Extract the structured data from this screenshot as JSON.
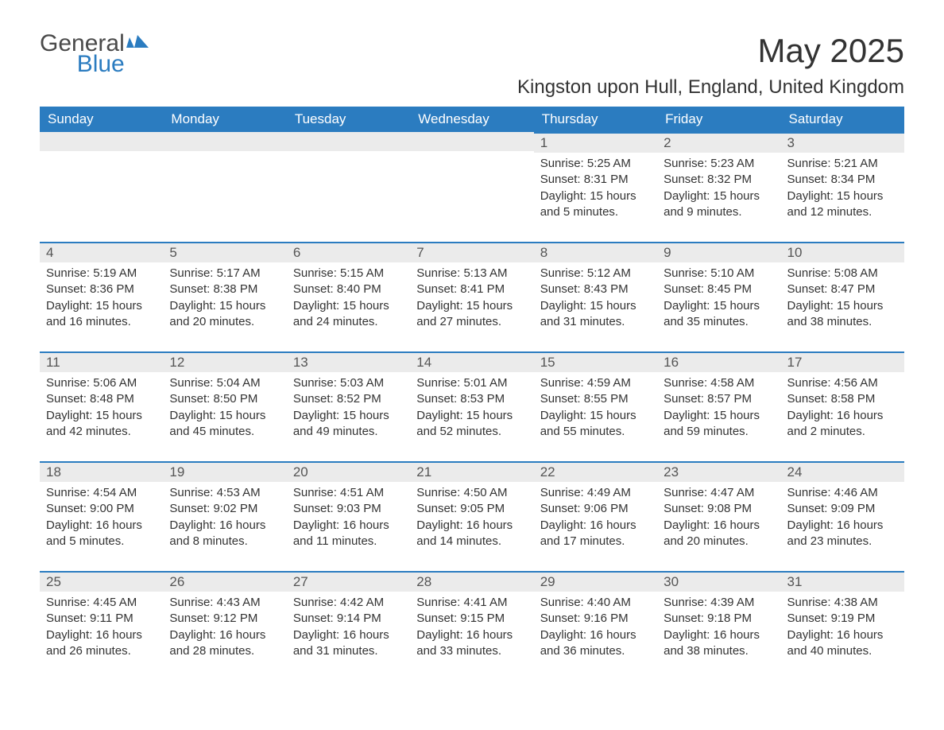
{
  "logo": {
    "text1": "General",
    "text2": "Blue"
  },
  "title": "May 2025",
  "location": "Kingston upon Hull, England, United Kingdom",
  "colors": {
    "header_bg": "#2b7cc0",
    "header_text": "#ffffff",
    "daynum_bg": "#ebebeb",
    "daynum_border": "#2b7cc0",
    "body_text": "#333333",
    "logo_gray": "#4a4a4a",
    "logo_blue": "#2b7cc0",
    "page_bg": "#ffffff"
  },
  "fonts": {
    "title_pt": 42,
    "location_pt": 24,
    "dayhead_pt": 17,
    "body_pt": 15
  },
  "dayheaders": [
    "Sunday",
    "Monday",
    "Tuesday",
    "Wednesday",
    "Thursday",
    "Friday",
    "Saturday"
  ],
  "weeks": [
    [
      null,
      null,
      null,
      null,
      {
        "n": "1",
        "sunrise": "5:25 AM",
        "sunset": "8:31 PM",
        "dl": "15 hours and 5 minutes."
      },
      {
        "n": "2",
        "sunrise": "5:23 AM",
        "sunset": "8:32 PM",
        "dl": "15 hours and 9 minutes."
      },
      {
        "n": "3",
        "sunrise": "5:21 AM",
        "sunset": "8:34 PM",
        "dl": "15 hours and 12 minutes."
      }
    ],
    [
      {
        "n": "4",
        "sunrise": "5:19 AM",
        "sunset": "8:36 PM",
        "dl": "15 hours and 16 minutes."
      },
      {
        "n": "5",
        "sunrise": "5:17 AM",
        "sunset": "8:38 PM",
        "dl": "15 hours and 20 minutes."
      },
      {
        "n": "6",
        "sunrise": "5:15 AM",
        "sunset": "8:40 PM",
        "dl": "15 hours and 24 minutes."
      },
      {
        "n": "7",
        "sunrise": "5:13 AM",
        "sunset": "8:41 PM",
        "dl": "15 hours and 27 minutes."
      },
      {
        "n": "8",
        "sunrise": "5:12 AM",
        "sunset": "8:43 PM",
        "dl": "15 hours and 31 minutes."
      },
      {
        "n": "9",
        "sunrise": "5:10 AM",
        "sunset": "8:45 PM",
        "dl": "15 hours and 35 minutes."
      },
      {
        "n": "10",
        "sunrise": "5:08 AM",
        "sunset": "8:47 PM",
        "dl": "15 hours and 38 minutes."
      }
    ],
    [
      {
        "n": "11",
        "sunrise": "5:06 AM",
        "sunset": "8:48 PM",
        "dl": "15 hours and 42 minutes."
      },
      {
        "n": "12",
        "sunrise": "5:04 AM",
        "sunset": "8:50 PM",
        "dl": "15 hours and 45 minutes."
      },
      {
        "n": "13",
        "sunrise": "5:03 AM",
        "sunset": "8:52 PM",
        "dl": "15 hours and 49 minutes."
      },
      {
        "n": "14",
        "sunrise": "5:01 AM",
        "sunset": "8:53 PM",
        "dl": "15 hours and 52 minutes."
      },
      {
        "n": "15",
        "sunrise": "4:59 AM",
        "sunset": "8:55 PM",
        "dl": "15 hours and 55 minutes."
      },
      {
        "n": "16",
        "sunrise": "4:58 AM",
        "sunset": "8:57 PM",
        "dl": "15 hours and 59 minutes."
      },
      {
        "n": "17",
        "sunrise": "4:56 AM",
        "sunset": "8:58 PM",
        "dl": "16 hours and 2 minutes."
      }
    ],
    [
      {
        "n": "18",
        "sunrise": "4:54 AM",
        "sunset": "9:00 PM",
        "dl": "16 hours and 5 minutes."
      },
      {
        "n": "19",
        "sunrise": "4:53 AM",
        "sunset": "9:02 PM",
        "dl": "16 hours and 8 minutes."
      },
      {
        "n": "20",
        "sunrise": "4:51 AM",
        "sunset": "9:03 PM",
        "dl": "16 hours and 11 minutes."
      },
      {
        "n": "21",
        "sunrise": "4:50 AM",
        "sunset": "9:05 PM",
        "dl": "16 hours and 14 minutes."
      },
      {
        "n": "22",
        "sunrise": "4:49 AM",
        "sunset": "9:06 PM",
        "dl": "16 hours and 17 minutes."
      },
      {
        "n": "23",
        "sunrise": "4:47 AM",
        "sunset": "9:08 PM",
        "dl": "16 hours and 20 minutes."
      },
      {
        "n": "24",
        "sunrise": "4:46 AM",
        "sunset": "9:09 PM",
        "dl": "16 hours and 23 minutes."
      }
    ],
    [
      {
        "n": "25",
        "sunrise": "4:45 AM",
        "sunset": "9:11 PM",
        "dl": "16 hours and 26 minutes."
      },
      {
        "n": "26",
        "sunrise": "4:43 AM",
        "sunset": "9:12 PM",
        "dl": "16 hours and 28 minutes."
      },
      {
        "n": "27",
        "sunrise": "4:42 AM",
        "sunset": "9:14 PM",
        "dl": "16 hours and 31 minutes."
      },
      {
        "n": "28",
        "sunrise": "4:41 AM",
        "sunset": "9:15 PM",
        "dl": "16 hours and 33 minutes."
      },
      {
        "n": "29",
        "sunrise": "4:40 AM",
        "sunset": "9:16 PM",
        "dl": "16 hours and 36 minutes."
      },
      {
        "n": "30",
        "sunrise": "4:39 AM",
        "sunset": "9:18 PM",
        "dl": "16 hours and 38 minutes."
      },
      {
        "n": "31",
        "sunrise": "4:38 AM",
        "sunset": "9:19 PM",
        "dl": "16 hours and 40 minutes."
      }
    ]
  ],
  "labels": {
    "sunrise": "Sunrise: ",
    "sunset": "Sunset: ",
    "daylight": "Daylight: "
  }
}
